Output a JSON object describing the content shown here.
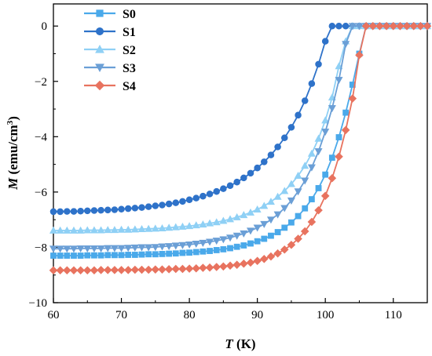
{
  "chart_data": {
    "type": "line",
    "xlabel_var": "T",
    "xlabel_unit": " (K)",
    "ylabel_var": "M",
    "ylabel_unit": " (emu/cm",
    "ylabel_sup": "3",
    "ylabel_close": ")",
    "xlim": [
      60,
      115
    ],
    "ylim": [
      -10,
      0.8
    ],
    "xticks": [
      60,
      70,
      80,
      90,
      100,
      110
    ],
    "yticks": [
      -10,
      -8,
      -6,
      -4,
      -2,
      0
    ],
    "legend_position": "top-left",
    "grid": false,
    "series": [
      {
        "name": "S0",
        "color": "#4aa9ea",
        "marker": "square",
        "x": [
          60,
          61,
          62,
          63,
          64,
          65,
          66,
          67,
          68,
          69,
          70,
          71,
          72,
          73,
          74,
          75,
          76,
          77,
          78,
          79,
          80,
          81,
          82,
          83,
          84,
          85,
          86,
          87,
          88,
          89,
          90,
          91,
          92,
          93,
          94,
          95,
          96,
          97,
          98,
          99,
          100,
          101,
          102,
          103,
          104,
          105,
          106,
          107,
          108,
          109,
          110,
          111,
          112,
          113,
          114,
          115
        ],
        "y": [
          -8.3,
          -8.3,
          -8.3,
          -8.3,
          -8.3,
          -8.29,
          -8.29,
          -8.29,
          -8.28,
          -8.28,
          -8.28,
          -8.27,
          -8.27,
          -8.26,
          -8.25,
          -8.25,
          -8.24,
          -8.23,
          -8.22,
          -8.2,
          -8.19,
          -8.17,
          -8.15,
          -8.13,
          -8.1,
          -8.07,
          -8.03,
          -7.98,
          -7.93,
          -7.86,
          -7.78,
          -7.69,
          -7.58,
          -7.45,
          -7.29,
          -7.1,
          -6.87,
          -6.59,
          -6.26,
          -5.86,
          -5.37,
          -4.76,
          -4.02,
          -3.13,
          -2.12,
          -1.0,
          0,
          0,
          0,
          0,
          0,
          0,
          0,
          0,
          0,
          0
        ]
      },
      {
        "name": "S1",
        "color": "#2e72c9",
        "marker": "circle",
        "x": [
          60,
          61,
          62,
          63,
          64,
          65,
          66,
          67,
          68,
          69,
          70,
          71,
          72,
          73,
          74,
          75,
          76,
          77,
          78,
          79,
          80,
          81,
          82,
          83,
          84,
          85,
          86,
          87,
          88,
          89,
          90,
          91,
          92,
          93,
          94,
          95,
          96,
          97,
          98,
          99,
          100,
          101,
          102,
          103,
          104,
          105,
          106,
          107,
          108,
          109,
          110,
          111,
          112,
          113,
          114,
          115
        ],
        "y": [
          -6.71,
          -6.71,
          -6.7,
          -6.7,
          -6.69,
          -6.68,
          -6.67,
          -6.66,
          -6.65,
          -6.64,
          -6.62,
          -6.6,
          -6.58,
          -6.56,
          -6.53,
          -6.5,
          -6.47,
          -6.43,
          -6.39,
          -6.34,
          -6.28,
          -6.22,
          -6.15,
          -6.07,
          -5.98,
          -5.88,
          -5.77,
          -5.64,
          -5.49,
          -5.32,
          -5.13,
          -4.91,
          -4.66,
          -4.37,
          -4.04,
          -3.66,
          -3.22,
          -2.7,
          -2.08,
          -1.38,
          -0.55,
          0,
          0,
          0,
          0,
          0,
          0,
          0,
          0,
          0,
          0,
          0,
          0,
          0,
          0,
          0
        ]
      },
      {
        "name": "S2",
        "color": "#8fd0f5",
        "marker": "triangle-up",
        "x": [
          60,
          61,
          62,
          63,
          64,
          65,
          66,
          67,
          68,
          69,
          70,
          71,
          72,
          73,
          74,
          75,
          76,
          77,
          78,
          79,
          80,
          81,
          82,
          83,
          84,
          85,
          86,
          87,
          88,
          89,
          90,
          91,
          92,
          93,
          94,
          95,
          96,
          97,
          98,
          99,
          100,
          101,
          102,
          103,
          104,
          105,
          106,
          107,
          108,
          109,
          110,
          111,
          112,
          113,
          114,
          115
        ],
        "y": [
          -7.39,
          -7.39,
          -7.39,
          -7.39,
          -7.39,
          -7.38,
          -7.38,
          -7.38,
          -7.37,
          -7.37,
          -7.36,
          -7.36,
          -7.35,
          -7.34,
          -7.33,
          -7.32,
          -7.31,
          -7.29,
          -7.27,
          -7.25,
          -7.23,
          -7.2,
          -7.17,
          -7.13,
          -7.09,
          -7.04,
          -6.98,
          -6.91,
          -6.83,
          -6.74,
          -6.63,
          -6.5,
          -6.35,
          -6.17,
          -5.96,
          -5.71,
          -5.41,
          -5.05,
          -4.61,
          -4.07,
          -3.41,
          -2.58,
          -1.45,
          -0.55,
          0,
          0,
          0,
          0,
          0,
          0,
          0,
          0,
          0,
          0,
          0,
          0
        ]
      },
      {
        "name": "S3",
        "color": "#6b9fd6",
        "marker": "triangle-down",
        "x": [
          60,
          61,
          62,
          63,
          64,
          65,
          66,
          67,
          68,
          69,
          70,
          71,
          72,
          73,
          74,
          75,
          76,
          77,
          78,
          79,
          80,
          81,
          82,
          83,
          84,
          85,
          86,
          87,
          88,
          89,
          90,
          91,
          92,
          93,
          94,
          95,
          96,
          97,
          98,
          99,
          100,
          101,
          102,
          103,
          104,
          105,
          106,
          107,
          108,
          109,
          110,
          111,
          112,
          113,
          114,
          115
        ],
        "y": [
          -8.05,
          -8.05,
          -8.05,
          -8.05,
          -8.04,
          -8.04,
          -8.04,
          -8.04,
          -8.03,
          -8.03,
          -8.03,
          -8.02,
          -8.01,
          -8.0,
          -8.0,
          -7.99,
          -7.97,
          -7.96,
          -7.94,
          -7.92,
          -7.9,
          -7.87,
          -7.84,
          -7.8,
          -7.76,
          -7.71,
          -7.65,
          -7.58,
          -7.5,
          -7.4,
          -7.29,
          -7.16,
          -7.0,
          -6.81,
          -6.58,
          -6.31,
          -5.98,
          -5.59,
          -5.11,
          -4.53,
          -3.82,
          -2.97,
          -1.95,
          -0.65,
          0,
          0,
          0,
          0,
          0,
          0,
          0,
          0,
          0,
          0,
          0,
          0
        ]
      },
      {
        "name": "S4",
        "color": "#e8735f",
        "marker": "diamond",
        "x": [
          60,
          61,
          62,
          63,
          64,
          65,
          66,
          67,
          68,
          69,
          70,
          71,
          72,
          73,
          74,
          75,
          76,
          77,
          78,
          79,
          80,
          81,
          82,
          83,
          84,
          85,
          86,
          87,
          88,
          89,
          90,
          91,
          92,
          93,
          94,
          95,
          96,
          97,
          98,
          99,
          100,
          101,
          102,
          103,
          104,
          105,
          106,
          107,
          108,
          109,
          110,
          111,
          112,
          113,
          114,
          115
        ],
        "y": [
          -8.83,
          -8.83,
          -8.83,
          -8.83,
          -8.83,
          -8.83,
          -8.83,
          -8.82,
          -8.82,
          -8.82,
          -8.82,
          -8.82,
          -8.81,
          -8.81,
          -8.81,
          -8.8,
          -8.8,
          -8.79,
          -8.78,
          -8.78,
          -8.77,
          -8.76,
          -8.74,
          -8.73,
          -8.71,
          -8.69,
          -8.66,
          -8.63,
          -8.59,
          -8.55,
          -8.49,
          -8.42,
          -8.33,
          -8.22,
          -8.08,
          -7.91,
          -7.69,
          -7.42,
          -7.08,
          -6.66,
          -6.14,
          -5.5,
          -4.72,
          -3.76,
          -2.62,
          -1.05,
          0,
          0,
          0,
          0,
          0,
          0,
          0,
          0,
          0,
          0
        ]
      }
    ]
  }
}
